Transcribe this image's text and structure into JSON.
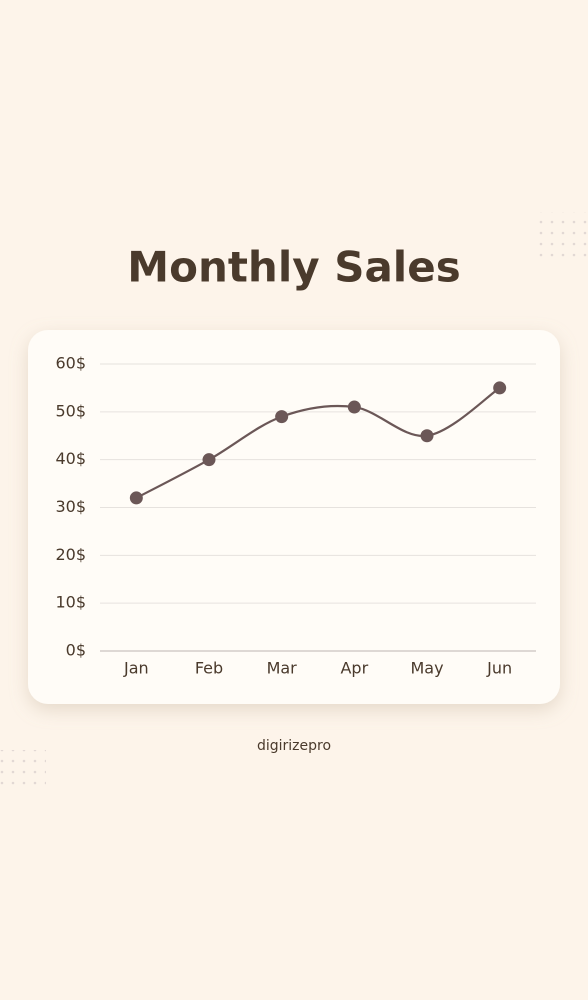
{
  "chart_data": {
    "type": "line",
    "title": "Monthly Sales",
    "categories": [
      "Jan",
      "Feb",
      "Mar",
      "Apr",
      "May",
      "Jun"
    ],
    "values": [
      32,
      40,
      49,
      51,
      45,
      55
    ],
    "color": "#6b5757",
    "ylim": [
      0,
      60
    ],
    "yticks": [
      {
        "value": 0,
        "label": "0$"
      },
      {
        "value": 10,
        "label": "10$"
      },
      {
        "value": 20,
        "label": "20$"
      },
      {
        "value": 30,
        "label": "30$"
      },
      {
        "value": 40,
        "label": "40$"
      },
      {
        "value": 50,
        "label": "50$"
      },
      {
        "value": 60,
        "label": "60$"
      }
    ],
    "grid": true,
    "footer": "digirizepro"
  }
}
